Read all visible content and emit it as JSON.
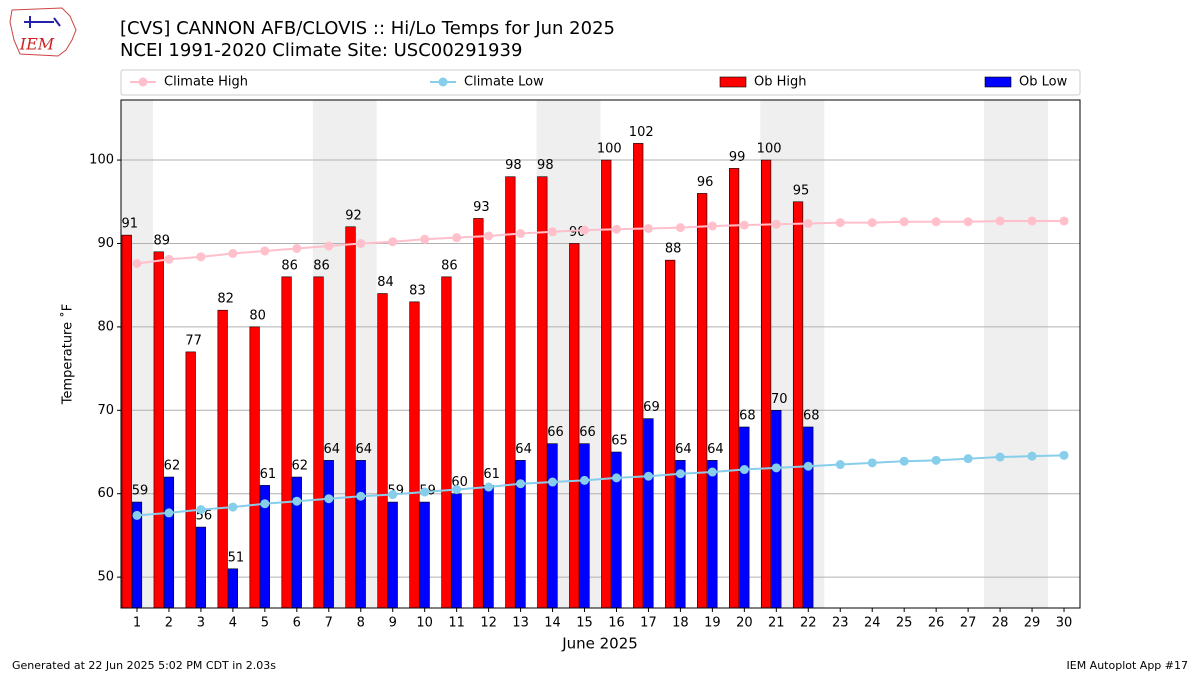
{
  "chart_data": {
    "type": "bar-line",
    "logo": "IEM",
    "title": "[CVS] CANNON AFB/CLOVIS :: Hi/Lo Temps for Jun 2025",
    "subtitle": "NCEI 1991-2020 Climate Site: USC00291939",
    "x_label": "June 2025",
    "y_label": "Temperature ˚F",
    "footer_left": "Generated at 22 Jun 2025 5:02 PM CDT in 2.03s",
    "footer_right": "IEM Autoplot App #17",
    "categories": [
      "1",
      "2",
      "3",
      "4",
      "5",
      "6",
      "7",
      "8",
      "9",
      "10",
      "11",
      "12",
      "13",
      "14",
      "15",
      "16",
      "17",
      "18",
      "19",
      "20",
      "21",
      "22",
      "23",
      "24",
      "25",
      "26",
      "27",
      "28",
      "29",
      "30"
    ],
    "ylim": [
      46.3,
      107.2
    ],
    "yticks": [
      50,
      60,
      70,
      80,
      90,
      100
    ],
    "grid": true,
    "legend": "top",
    "series": [
      {
        "name": "Climate High",
        "kind": "line",
        "color": "#ffc0cb",
        "values": [
          87.6,
          88.1,
          88.4,
          88.8,
          89.1,
          89.4,
          89.7,
          90.0,
          90.2,
          90.5,
          90.7,
          90.9,
          91.2,
          91.4,
          91.6,
          91.7,
          91.8,
          91.9,
          92.1,
          92.2,
          92.3,
          92.4,
          92.5,
          92.5,
          92.6,
          92.6,
          92.6,
          92.7,
          92.7,
          92.7
        ]
      },
      {
        "name": "Climate Low",
        "kind": "line",
        "color": "#87ceeb",
        "values": [
          57.4,
          57.7,
          58.1,
          58.4,
          58.8,
          59.1,
          59.4,
          59.7,
          59.9,
          60.2,
          60.5,
          60.8,
          61.2,
          61.4,
          61.6,
          61.9,
          62.1,
          62.4,
          62.6,
          62.9,
          63.1,
          63.3,
          63.5,
          63.7,
          63.9,
          64.0,
          64.2,
          64.4,
          64.5,
          64.6
        ]
      },
      {
        "name": "Ob High",
        "kind": "bar",
        "color": "#ff0000",
        "values": [
          91,
          89,
          77,
          82,
          80,
          86,
          86,
          92,
          84,
          83,
          86,
          93,
          98,
          98,
          90,
          100,
          102,
          88,
          96,
          99,
          100,
          95,
          null,
          null,
          null,
          null,
          null,
          null,
          null,
          null
        ]
      },
      {
        "name": "Ob Low",
        "kind": "bar",
        "color": "#0000ff",
        "values": [
          59,
          62,
          56,
          51,
          61,
          62,
          64,
          64,
          59,
          59,
          60,
          61,
          64,
          66,
          66,
          65,
          69,
          64,
          64,
          68,
          70,
          68,
          null,
          null,
          null,
          null,
          null,
          null,
          null,
          null
        ]
      }
    ]
  }
}
